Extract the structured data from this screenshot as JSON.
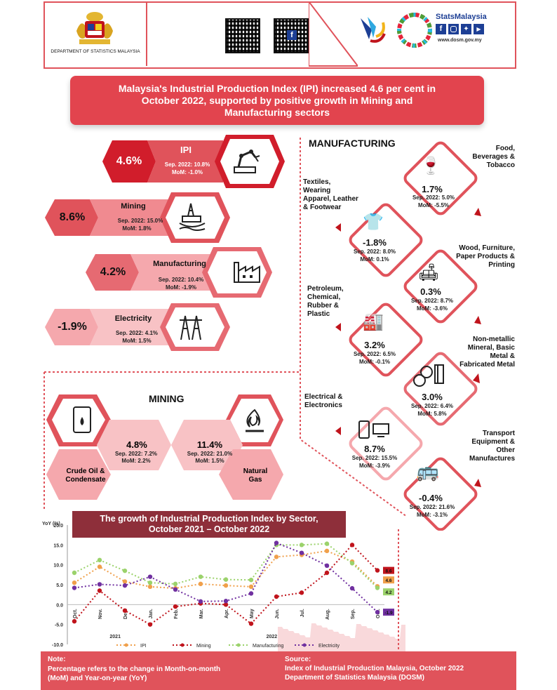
{
  "header": {
    "department": "DEPARTMENT OF STATISTICS MALAYSIA",
    "brand": "StatsMalaysia",
    "website": "www.dosm.gov.my",
    "social_icons": [
      "facebook-icon",
      "instagram-icon",
      "twitter-icon",
      "youtube-icon"
    ],
    "qr_label_a": "A",
    "qr_label_b": "f"
  },
  "banner": {
    "title": "Malaysia's Industrial Production Index (IPI) increased 4.6 per cent in October 2022, supported by positive growth in Mining and Manufacturing sectors"
  },
  "overview": [
    {
      "name": "IPI",
      "value": "4.6%",
      "sep": "Sep. 2022: 10.8%",
      "mom": "MoM: -1.0%",
      "icon": "robot-arm-icon"
    },
    {
      "name": "Mining",
      "value": "8.6%",
      "sep": "Sep. 2022: 15.0%",
      "mom": "MoM: 1.8%",
      "icon": "oil-rig-icon"
    },
    {
      "name": "Manufacturing",
      "value": "4.2%",
      "sep": "Sep. 2022: 10.4%",
      "mom": "MoM: -1.9%",
      "icon": "factory-icon"
    },
    {
      "name": "Electricity",
      "value": "-1.9%",
      "sep": "Sep. 2022: 4.1%",
      "mom": "MoM: 1.5%",
      "icon": "pylon-icon"
    }
  ],
  "mining": {
    "title": "MINING",
    "items": [
      {
        "name": "Crude Oil & Condensate",
        "value": "4.8%",
        "sep": "Sep. 2022: 7.2%",
        "mom": "MoM: 2.2%",
        "icon": "oil-barrel-icon"
      },
      {
        "name": "Natural Gas",
        "value": "11.4%",
        "sep": "Sep. 2022: 21.0%",
        "mom": "MoM: 1.5%",
        "icon": "gas-flame-icon"
      }
    ]
  },
  "manufacturing": {
    "title": "MANUFACTURING",
    "items": [
      {
        "name": "Food, Beverages & Tobacco",
        "value": "1.7%",
        "sep": "Sep. 2022: 5.0%",
        "mom": "MoM: -5.5%",
        "icon": "food-icon"
      },
      {
        "name": "Textiles, Wearing Apparel, Leather & Footwear",
        "value": "-1.8%",
        "sep": "Sep. 2022: 8.0%",
        "mom": "MoM: 0.1%",
        "icon": "shirt-icon"
      },
      {
        "name": "Wood, Furniture, Paper Products & Printing",
        "value": "0.3%",
        "sep": "Sep. 2022: 8.7%",
        "mom": "MoM: -3.6%",
        "icon": "furniture-icon"
      },
      {
        "name": "Petroleum, Chemical, Rubber & Plastic",
        "value": "3.2%",
        "sep": "Sep. 2022: 6.5%",
        "mom": "MoM: -0.1%",
        "icon": "refinery-icon"
      },
      {
        "name": "Non-metallic Mineral, Basic Metal & Fabricated Metal",
        "value": "3.0%",
        "sep": "Sep. 2022: 6.4%",
        "mom": "MoM: 5.8%",
        "icon": "pipes-icon"
      },
      {
        "name": "Electrical & Electronics",
        "value": "8.7%",
        "sep": "Sep. 2022: 15.5%",
        "mom": "MoM: -3.9%",
        "icon": "electronics-icon"
      },
      {
        "name": "Transport Equipment & Other Manufactures",
        "value": "-0.4%",
        "sep": "Sep. 2022: 21.6%",
        "mom": "MoM: -3.1%",
        "icon": "car-icon"
      }
    ]
  },
  "chart_data": {
    "type": "line",
    "title": "The growth of Industrial Production Index by Sector, October 2021 – October 2022",
    "ylabel": "YoY (%)",
    "ylim": [
      -10,
      20
    ],
    "yticks": [
      "20.0",
      "15.0",
      "10.0",
      "5.0",
      "0.0",
      "-5.0",
      "-10.0"
    ],
    "categories": [
      "Oct.",
      "Nov.",
      "Dec.",
      "Jan.",
      "Feb.",
      "Mar.",
      "Apr.",
      "May",
      "Jun.",
      "Jul.",
      "Aug.",
      "Sep.",
      "Oct."
    ],
    "years": [
      "2021",
      "2022"
    ],
    "series": [
      {
        "name": "IPI",
        "color": "#f0a04b",
        "values": [
          5.5,
          9.5,
          5.8,
          4.5,
          4.1,
          5.2,
          4.8,
          4.5,
          12.0,
          12.5,
          13.5,
          10.8,
          4.6
        ]
      },
      {
        "name": "Mining",
        "color": "#c0141c",
        "values": [
          -4.2,
          3.5,
          -1.5,
          -5.0,
          -0.5,
          0.3,
          0.0,
          -4.8,
          2.0,
          3.0,
          8.0,
          15.0,
          8.6
        ]
      },
      {
        "name": "Manufacturing",
        "color": "#9bd26b",
        "values": [
          8.0,
          11.2,
          8.5,
          5.5,
          5.2,
          7.0,
          6.3,
          6.2,
          15.0,
          15.0,
          15.3,
          10.4,
          4.2
        ]
      },
      {
        "name": "Electricity",
        "color": "#7030a0",
        "values": [
          4.2,
          5.1,
          4.8,
          7.0,
          3.8,
          0.8,
          0.9,
          2.8,
          15.5,
          13.0,
          9.8,
          4.1,
          -1.9
        ]
      }
    ],
    "end_labels": [
      "8.6",
      "4.6",
      "4.2",
      "-1.9"
    ]
  },
  "footer": {
    "note_title": "Note:",
    "note_text": "Percentage refers to the change in Month-on-month (MoM) and Year-on-year (YoY)",
    "source_title": "Source:",
    "source_line1": "Index of Industrial Production Malaysia, October 2022",
    "source_line2": "Department of Statistics Malaysia (DOSM)"
  },
  "colors": {
    "accent": "#e0535b",
    "dark": "#8e2f3a",
    "light": "#f5a8ad",
    "pale": "#fbd0d2"
  }
}
